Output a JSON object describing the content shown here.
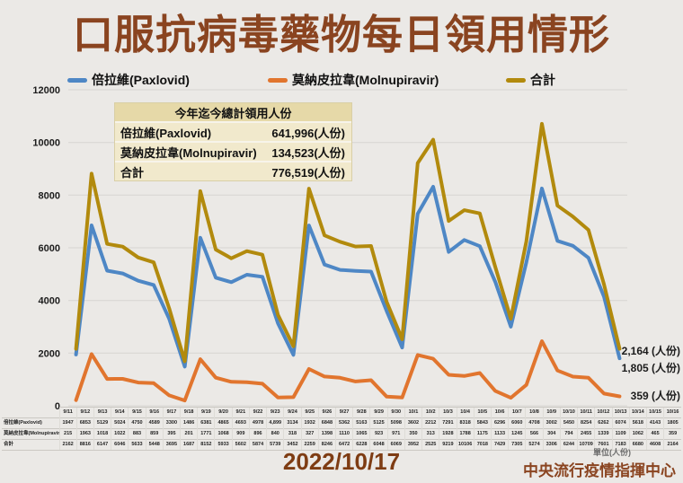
{
  "header": {
    "title": "口服抗病毒藥物每日領用情形"
  },
  "legend": [
    {
      "label": "倍拉維(Paxlovid)",
      "color": "#4e87c5"
    },
    {
      "label": "莫納皮拉韋(Molnupiravir)",
      "color": "#e1752e"
    },
    {
      "label": "合計",
      "color": "#b28a0d"
    }
  ],
  "summary_table": {
    "title": "今年迄今總計領用人份",
    "rows": [
      {
        "label": "倍拉維(Paxlovid)",
        "value": "641,996(人份)"
      },
      {
        "label": "莫納皮拉韋(Molnupiravir)",
        "value": "134,523(人份)"
      },
      {
        "label": "合計",
        "value": "776,519(人份)"
      }
    ]
  },
  "chart_data": {
    "type": "line",
    "title": "口服抗病毒藥物每日領用情形",
    "xlabel": "",
    "ylabel": "",
    "ylim": [
      0,
      12000
    ],
    "ytick_step": 2000,
    "grid": true,
    "legend_position": "top",
    "categories": [
      "9/11",
      "9/12",
      "9/13",
      "9/14",
      "9/15",
      "9/16",
      "9/17",
      "9/18",
      "9/19",
      "9/20",
      "9/21",
      "9/22",
      "9/23",
      "9/24",
      "9/25",
      "9/26",
      "9/27",
      "9/28",
      "9/29",
      "9/30",
      "10/1",
      "10/2",
      "10/3",
      "10/4",
      "10/5",
      "10/6",
      "10/7",
      "10/8",
      "10/9",
      "10/10",
      "10/11",
      "10/12",
      "10/13",
      "10/14",
      "10/15",
      "10/16"
    ],
    "series": [
      {
        "name": "倍拉維(Paxlovid)",
        "color": "#4e87c5",
        "key": "paxlovid",
        "values": [
          1947,
          6853,
          5129,
          5024,
          4750,
          4589,
          3300,
          1486,
          6381,
          4865,
          4693,
          4978,
          4899,
          3134,
          1932,
          6848,
          5362,
          5163,
          5125,
          5098,
          3602,
          2212,
          7291,
          8318,
          5843,
          6296,
          6060,
          4708,
          3002,
          5450,
          8254,
          6262,
          6074,
          5618,
          4143,
          1805
        ]
      },
      {
        "name": "莫納皮拉韋(Molnupiravir)",
        "color": "#e1752e",
        "key": "molnupiravir",
        "values": [
          215,
          1963,
          1018,
          1022,
          883,
          859,
          395,
          201,
          1771,
          1068,
          909,
          896,
          840,
          318,
          327,
          1398,
          1110,
          1065,
          923,
          971,
          350,
          313,
          1928,
          1788,
          1175,
          1133,
          1245,
          566,
          304,
          794,
          2455,
          1339,
          1109,
          1062,
          465,
          359
        ]
      },
      {
        "name": "合計",
        "color": "#b28a0d",
        "key": "total",
        "values": [
          2162,
          8816,
          6147,
          6046,
          5633,
          5448,
          3695,
          1687,
          8152,
          5933,
          5602,
          5874,
          5739,
          3452,
          2259,
          8246,
          6472,
          6228,
          6048,
          6069,
          3952,
          2525,
          9219,
          10106,
          7018,
          7429,
          7305,
          5274,
          3306,
          6244,
          10709,
          7601,
          7183,
          6680,
          4608,
          2164
        ]
      }
    ],
    "end_labels": [
      "2,164 (人份)",
      "1,805 (人份)",
      "359 (人份)"
    ]
  },
  "bottom_table": {
    "dates": [
      "9/11",
      "9/12",
      "9/13",
      "9/14",
      "9/15",
      "9/16",
      "9/17",
      "9/18",
      "9/19",
      "9/20",
      "9/21",
      "9/22",
      "9/23",
      "9/24",
      "9/25",
      "9/26",
      "9/27",
      "9/28",
      "9/29",
      "9/30",
      "10/1",
      "10/2",
      "10/3",
      "10/4",
      "10/5",
      "10/6",
      "10/7",
      "10/8",
      "10/9",
      "10/10",
      "10/11",
      "10/12",
      "10/13",
      "10/14",
      "10/15",
      "10/16"
    ],
    "rows": [
      {
        "label": "倍拉維(Paxlovid)",
        "cells": [
          "1947",
          "6853",
          "5129",
          "5024",
          "4750",
          "4589",
          "3300",
          "1486",
          "6381",
          "4865",
          "4693",
          "4978",
          "4,899",
          "3134",
          "1932",
          "6848",
          "5362",
          "5163",
          "5125",
          "5098",
          "3602",
          "2212",
          "7291",
          "8318",
          "5843",
          "6296",
          "6060",
          "4708",
          "3002",
          "5450",
          "8254",
          "6262",
          "6074",
          "5618",
          "4143",
          "1805"
        ]
      },
      {
        "label": "莫納皮拉韋(Molnupiravir)",
        "cells": [
          "215",
          "1963",
          "1018",
          "1022",
          "883",
          "859",
          "395",
          "201",
          "1771",
          "1068",
          "909",
          "896",
          "840",
          "318",
          "327",
          "1398",
          "1110",
          "1065",
          "923",
          "971",
          "350",
          "313",
          "1928",
          "1788",
          "1175",
          "1133",
          "1245",
          "566",
          "304",
          "794",
          "2455",
          "1339",
          "1109",
          "1062",
          "465",
          "359"
        ]
      },
      {
        "label": "合計",
        "cells": [
          "2162",
          "8816",
          "6147",
          "6046",
          "5633",
          "5448",
          "3695",
          "1687",
          "8152",
          "5933",
          "5602",
          "5874",
          "5739",
          "3452",
          "2259",
          "8246",
          "6472",
          "6228",
          "6048",
          "6069",
          "3952",
          "2525",
          "9219",
          "10106",
          "7018",
          "7429",
          "7305",
          "5274",
          "3306",
          "6244",
          "10709",
          "7601",
          "7183",
          "6680",
          "4608",
          "2164"
        ]
      }
    ]
  },
  "footer": {
    "date": "2022/10/17",
    "unit": "單位(人份)",
    "org": "中央流行疫情指揮中心"
  }
}
